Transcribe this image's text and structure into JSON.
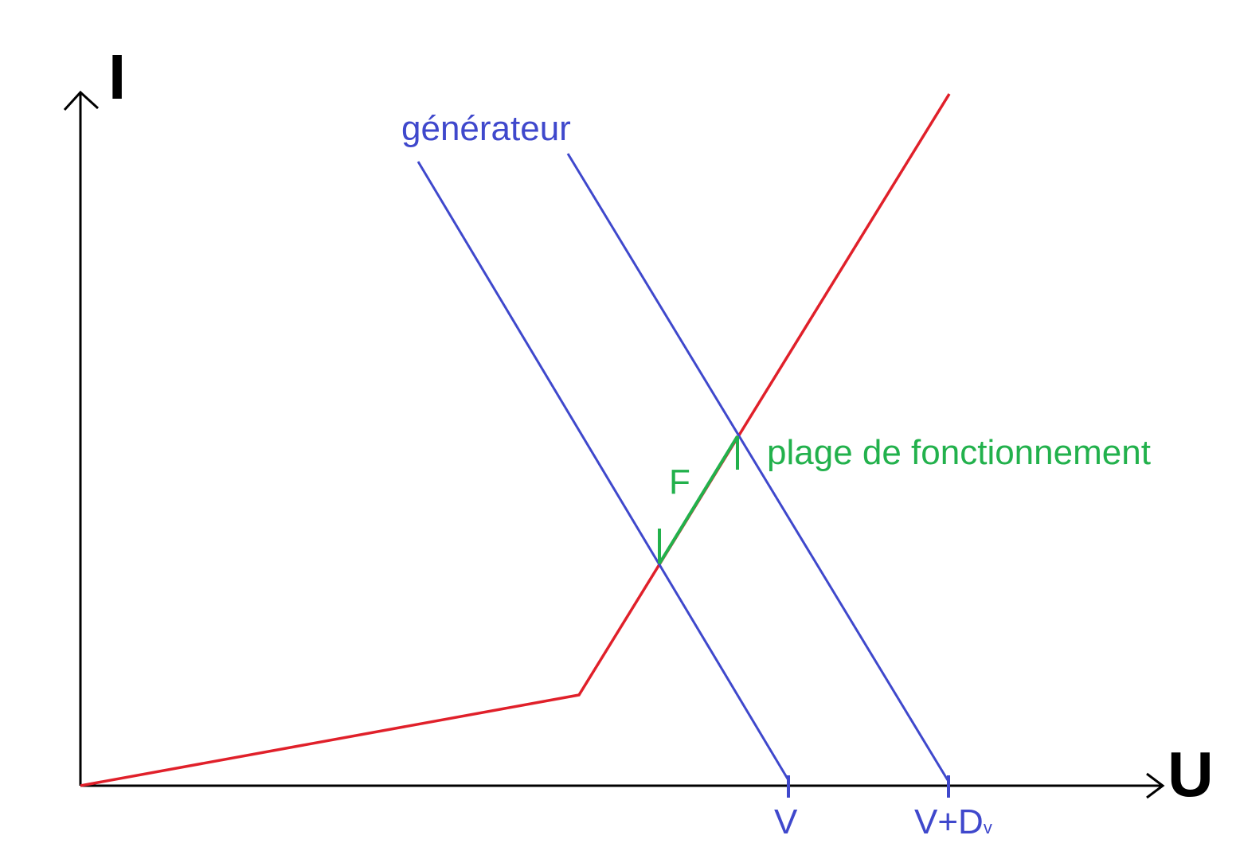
{
  "axes": {
    "y_label": "I",
    "x_label": "U"
  },
  "ticks": {
    "v": "V",
    "v_plus_main": "V+D",
    "v_plus_sub": "v"
  },
  "labels": {
    "generator": "générateur",
    "operating_range": "plage de fonctionnement",
    "operating_point": "F"
  },
  "colors": {
    "axis": "#000000",
    "characteristic": "#e0202a",
    "generator": "#3f48cc",
    "operating": "#22b14c"
  }
}
